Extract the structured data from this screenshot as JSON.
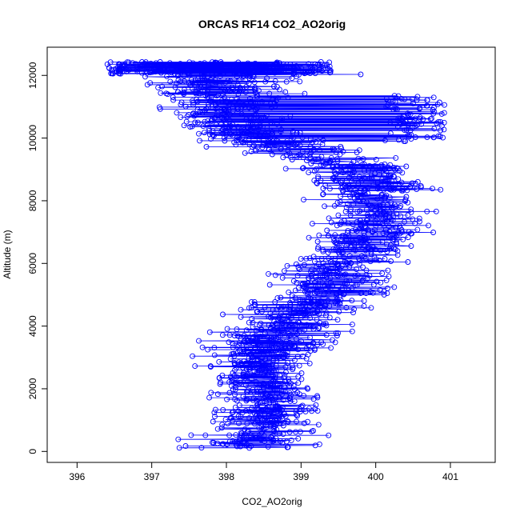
{
  "chart_data": {
    "type": "line",
    "title": "ORCAS RF14 CO2_AO2orig",
    "xlabel": "CO2_AO2orig",
    "ylabel": "Altitude (m)",
    "xlim": [
      395.6,
      401.6
    ],
    "ylim": [
      -350,
      12900
    ],
    "x_ticks": [
      396,
      397,
      398,
      399,
      400,
      401
    ],
    "y_ticks": [
      0,
      2000,
      4000,
      6000,
      8000,
      10000,
      12000
    ],
    "grid": false,
    "legend": "none",
    "marker": "open-circle",
    "series_color": "#0000ff",
    "series": [
      {
        "profile": [
          {
            "alt": 100,
            "center": 398.3,
            "spread": 0.9
          },
          {
            "alt": 600,
            "center": 398.5,
            "spread": 0.7
          },
          {
            "alt": 1200,
            "center": 398.6,
            "spread": 0.6
          },
          {
            "alt": 2000,
            "center": 398.5,
            "spread": 0.6
          },
          {
            "alt": 2700,
            "center": 398.4,
            "spread": 0.6
          },
          {
            "alt": 3500,
            "center": 398.6,
            "spread": 0.7
          },
          {
            "alt": 4200,
            "center": 398.9,
            "spread": 0.7
          },
          {
            "alt": 5000,
            "center": 399.3,
            "spread": 0.7
          },
          {
            "alt": 5800,
            "center": 399.5,
            "spread": 0.7
          },
          {
            "alt": 6500,
            "center": 399.8,
            "spread": 0.6
          },
          {
            "alt": 7200,
            "center": 400.0,
            "spread": 0.6
          },
          {
            "alt": 8000,
            "center": 399.9,
            "spread": 0.6
          },
          {
            "alt": 8700,
            "center": 400.0,
            "spread": 0.7
          },
          {
            "alt": 9300,
            "center": 399.5,
            "spread": 0.8
          },
          {
            "alt": 9800,
            "center": 398.6,
            "spread": 0.7
          },
          {
            "alt": 10400,
            "center": 398.0,
            "spread": 0.6
          },
          {
            "alt": 11000,
            "center": 398.0,
            "spread": 0.7
          },
          {
            "alt": 11600,
            "center": 397.9,
            "spread": 0.8
          },
          {
            "alt": 12100,
            "center": 398.0,
            "spread": 1.3
          },
          {
            "alt": 12400,
            "center": 398.0,
            "spread": 1.1
          }
        ],
        "upper_branch": [
          {
            "alt": 11200,
            "center": 400.5,
            "spread": 0.4
          },
          {
            "alt": 10600,
            "center": 400.6,
            "spread": 0.4
          },
          {
            "alt": 10000,
            "center": 400.5,
            "spread": 0.4
          }
        ]
      }
    ]
  }
}
